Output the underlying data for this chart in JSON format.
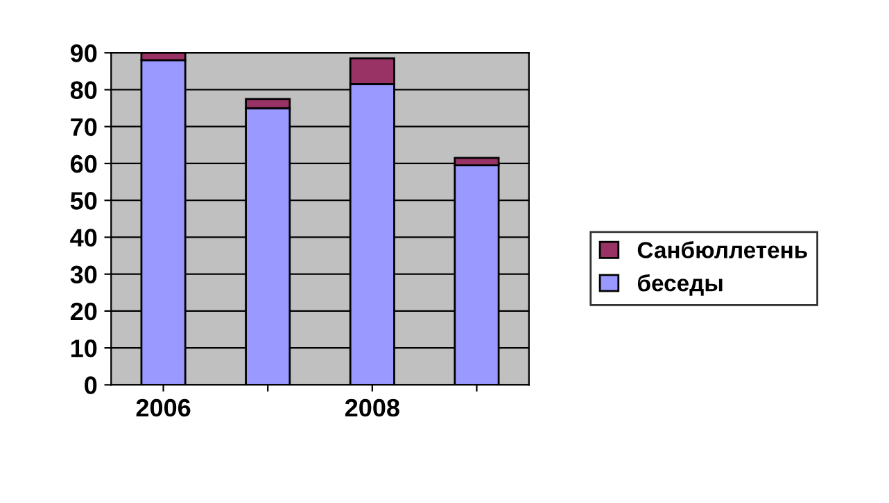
{
  "chart_data": {
    "type": "bar",
    "stacked": true,
    "categories": [
      "2006",
      null,
      "2008",
      null
    ],
    "series": [
      {
        "name": "беседы",
        "color": "#9999ff",
        "values": [
          88,
          75,
          81.5,
          59.5
        ]
      },
      {
        "name": "Санбюллетень",
        "color": "#993366",
        "values": [
          2,
          2.5,
          7,
          2
        ]
      }
    ],
    "ylim": [
      0,
      90
    ],
    "yticks": [
      0,
      10,
      20,
      30,
      40,
      50,
      60,
      70,
      80,
      90
    ],
    "grid": "y",
    "legend": "right"
  }
}
